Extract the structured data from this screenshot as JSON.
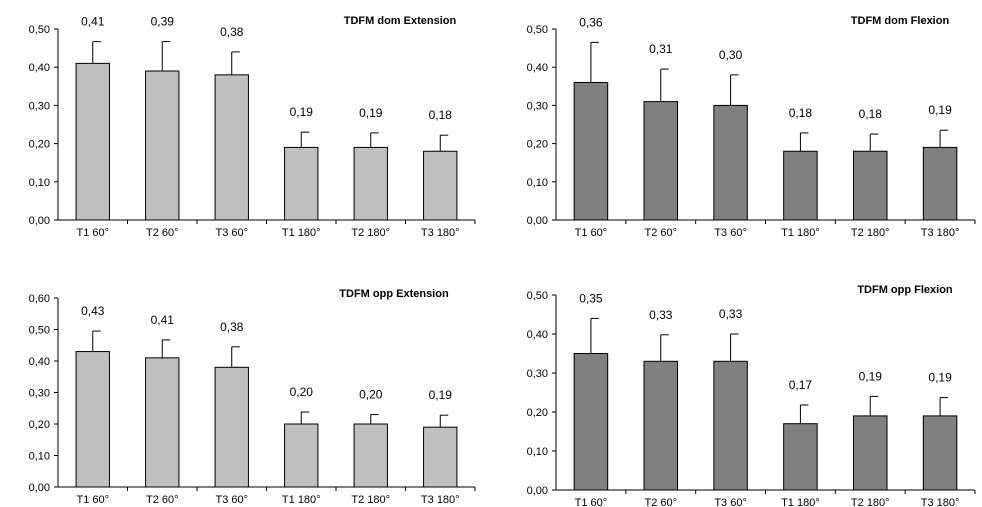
{
  "chart_data": [
    {
      "type": "bar",
      "title": "TDFM dom Extension",
      "categories": [
        "T1 60°",
        "T2 60°",
        "T3 60°",
        "T1 180°",
        "T2 180°",
        "T3 180°"
      ],
      "values": [
        0.41,
        0.39,
        0.38,
        0.19,
        0.19,
        0.18
      ],
      "value_labels": [
        "0,41",
        "0,39",
        "0,38",
        "0,19",
        "0,19",
        "0,18"
      ],
      "error_upper": [
        0.467,
        0.467,
        0.44,
        0.23,
        0.228,
        0.222
      ],
      "ylim": [
        0,
        0.5
      ],
      "yticks": [
        "0,00",
        "0,10",
        "0,20",
        "0,30",
        "0,40",
        "0,50"
      ],
      "bar_color": "#c0c0c0",
      "grid": false
    },
    {
      "type": "bar",
      "title": "TDFM dom Flexion",
      "categories": [
        "T1 60°",
        "T2 60°",
        "T3 60°",
        "T1 180°",
        "T2 180°",
        "T3 180°"
      ],
      "values": [
        0.36,
        0.31,
        0.3,
        0.18,
        0.18,
        0.19
      ],
      "value_labels": [
        "0,36",
        "0,31",
        "0,30",
        "0,18",
        "0,18",
        "0,19"
      ],
      "error_upper": [
        0.465,
        0.395,
        0.38,
        0.228,
        0.225,
        0.235
      ],
      "ylim": [
        0,
        0.5
      ],
      "yticks": [
        "0,00",
        "0,10",
        "0,20",
        "0,30",
        "0,40",
        "0,50"
      ],
      "bar_color": "#808080",
      "grid": false
    },
    {
      "type": "bar",
      "title": "TDFM opp Extension",
      "categories": [
        "T1 60°",
        "T2 60°",
        "T3 60°",
        "T1 180°",
        "T2 180°",
        "T3 180°"
      ],
      "values": [
        0.43,
        0.41,
        0.38,
        0.2,
        0.2,
        0.19
      ],
      "value_labels": [
        "0,43",
        "0,41",
        "0,38",
        "0,20",
        "0,20",
        "0,19"
      ],
      "error_upper": [
        0.495,
        0.467,
        0.445,
        0.238,
        0.23,
        0.228
      ],
      "ylim": [
        0,
        0.6
      ],
      "yticks": [
        "0,00",
        "0,10",
        "0,20",
        "0,30",
        "0,40",
        "0,50",
        "0,60"
      ],
      "bar_color": "#c0c0c0",
      "grid": false
    },
    {
      "type": "bar",
      "title": "TDFM opp Flexion",
      "categories": [
        "T1 60°",
        "T2 60°",
        "T3 60°",
        "T1 180°",
        "T2 180°",
        "T3 180°"
      ],
      "values": [
        0.35,
        0.33,
        0.33,
        0.17,
        0.19,
        0.19
      ],
      "value_labels": [
        "0,35",
        "0,33",
        "0,33",
        "0,17",
        "0,19",
        "0,19"
      ],
      "error_upper": [
        0.44,
        0.398,
        0.4,
        0.218,
        0.24,
        0.237
      ],
      "ylim": [
        0,
        0.5
      ],
      "yticks": [
        "0,00",
        "0,10",
        "0,20",
        "0,30",
        "0,40",
        "0,50"
      ],
      "bar_color": "#808080",
      "grid": false
    }
  ]
}
